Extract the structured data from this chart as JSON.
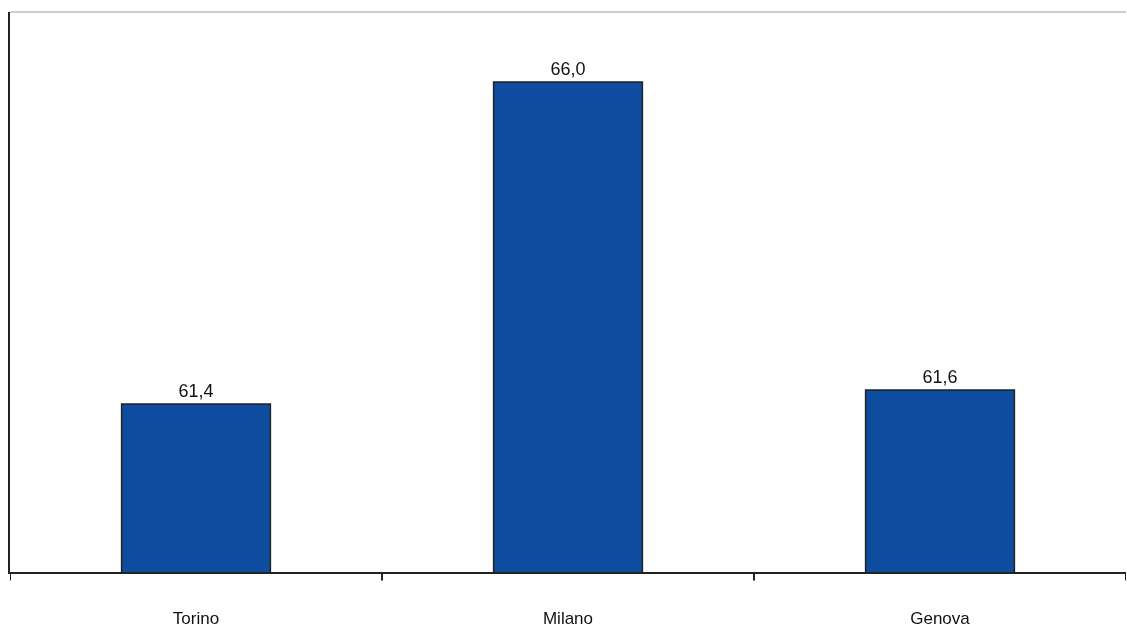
{
  "chart_data": {
    "type": "bar",
    "categories": [
      "Torino",
      "Milano",
      "Genova"
    ],
    "values": [
      61.4,
      66.0,
      61.6
    ],
    "value_labels": [
      "61,4",
      "66,0",
      "61,6"
    ],
    "color": "#0d4c9e",
    "ylim": [
      59,
      67
    ],
    "tick_labels": "x"
  }
}
